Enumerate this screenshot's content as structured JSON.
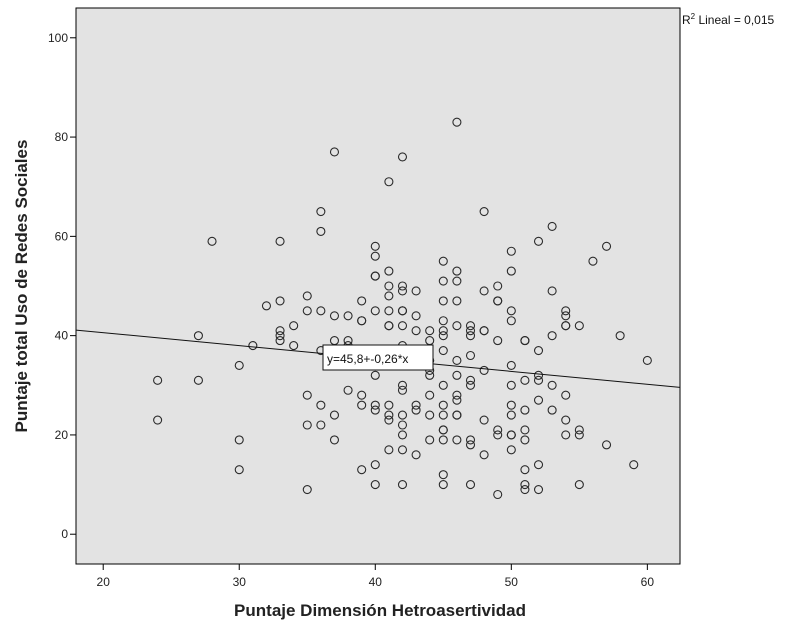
{
  "chart_data": {
    "type": "scatter",
    "title": "",
    "xlabel": "Puntaje Dimensión Hetroasertividad",
    "ylabel": "Puntaje total Uso de Redes Sociales",
    "xlim": [
      18,
      62.4
    ],
    "ylim": [
      -6,
      106
    ],
    "xticks": [
      20,
      30,
      40,
      50,
      60
    ],
    "yticks": [
      0,
      20,
      40,
      60,
      80,
      100
    ],
    "grid": false,
    "plot_background": "#e3e3e3",
    "marker_color": "#2b2b2b",
    "fit_line": {
      "intercept": 45.8,
      "slope": -0.26,
      "equation_label": "y=45,8+-0,26*x",
      "r2_prefix": "R",
      "r2_sup": "2",
      "r2_suffix": " Lineal = 0,015"
    },
    "points": [
      [
        24,
        31
      ],
      [
        24,
        23
      ],
      [
        27,
        40
      ],
      [
        27,
        31
      ],
      [
        28,
        59
      ],
      [
        30,
        34
      ],
      [
        30,
        19
      ],
      [
        30,
        13
      ],
      [
        31,
        38
      ],
      [
        32,
        46
      ],
      [
        33,
        59
      ],
      [
        33,
        47
      ],
      [
        33,
        41
      ],
      [
        33,
        40
      ],
      [
        33,
        39
      ],
      [
        34,
        42
      ],
      [
        34,
        38
      ],
      [
        35,
        48
      ],
      [
        35,
        45
      ],
      [
        35,
        28
      ],
      [
        35,
        22
      ],
      [
        35,
        9
      ],
      [
        36,
        65
      ],
      [
        36,
        61
      ],
      [
        36,
        45
      ],
      [
        36,
        37
      ],
      [
        36,
        26
      ],
      [
        36,
        22
      ],
      [
        37,
        77
      ],
      [
        37,
        44
      ],
      [
        37,
        39
      ],
      [
        37,
        24
      ],
      [
        37,
        19
      ],
      [
        38,
        44
      ],
      [
        38,
        39
      ],
      [
        38,
        38
      ],
      [
        38,
        29
      ],
      [
        39,
        47
      ],
      [
        39,
        43
      ],
      [
        39,
        43
      ],
      [
        39,
        28
      ],
      [
        39,
        26
      ],
      [
        39,
        13
      ],
      [
        40,
        58
      ],
      [
        40,
        56
      ],
      [
        40,
        52
      ],
      [
        40,
        52
      ],
      [
        40,
        45
      ],
      [
        40,
        34
      ],
      [
        40,
        32
      ],
      [
        40,
        26
      ],
      [
        40,
        25
      ],
      [
        40,
        14
      ],
      [
        40,
        10
      ],
      [
        41,
        71
      ],
      [
        41,
        53
      ],
      [
        41,
        50
      ],
      [
        41,
        48
      ],
      [
        41,
        45
      ],
      [
        41,
        42
      ],
      [
        41,
        42
      ],
      [
        41,
        35
      ],
      [
        41,
        26
      ],
      [
        41,
        24
      ],
      [
        41,
        23
      ],
      [
        41,
        17
      ],
      [
        42,
        76
      ],
      [
        42,
        50
      ],
      [
        42,
        49
      ],
      [
        42,
        45
      ],
      [
        42,
        45
      ],
      [
        42,
        42
      ],
      [
        42,
        38
      ],
      [
        42,
        36
      ],
      [
        42,
        30
      ],
      [
        42,
        29
      ],
      [
        42,
        24
      ],
      [
        42,
        22
      ],
      [
        42,
        20
      ],
      [
        42,
        17
      ],
      [
        42,
        10
      ],
      [
        43,
        49
      ],
      [
        43,
        44
      ],
      [
        43,
        41
      ],
      [
        43,
        34
      ],
      [
        43,
        26
      ],
      [
        43,
        25
      ],
      [
        43,
        16
      ],
      [
        44,
        39
      ],
      [
        44,
        41
      ],
      [
        44,
        35
      ],
      [
        44,
        33
      ],
      [
        44,
        32
      ],
      [
        44,
        28
      ],
      [
        44,
        24
      ],
      [
        44,
        19
      ],
      [
        45,
        55
      ],
      [
        45,
        51
      ],
      [
        45,
        47
      ],
      [
        45,
        43
      ],
      [
        45,
        41
      ],
      [
        45,
        40
      ],
      [
        45,
        37
      ],
      [
        45,
        30
      ],
      [
        45,
        26
      ],
      [
        45,
        24
      ],
      [
        45,
        21
      ],
      [
        45,
        21
      ],
      [
        45,
        19
      ],
      [
        45,
        12
      ],
      [
        45,
        10
      ],
      [
        46,
        83
      ],
      [
        46,
        53
      ],
      [
        46,
        51
      ],
      [
        46,
        47
      ],
      [
        46,
        42
      ],
      [
        46,
        35
      ],
      [
        46,
        32
      ],
      [
        46,
        28
      ],
      [
        46,
        27
      ],
      [
        46,
        24
      ],
      [
        46,
        24
      ],
      [
        46,
        19
      ],
      [
        47,
        42
      ],
      [
        47,
        41
      ],
      [
        47,
        40
      ],
      [
        47,
        36
      ],
      [
        47,
        31
      ],
      [
        47,
        30
      ],
      [
        47,
        19
      ],
      [
        47,
        18
      ],
      [
        47,
        10
      ],
      [
        48,
        65
      ],
      [
        48,
        49
      ],
      [
        48,
        41
      ],
      [
        48,
        41
      ],
      [
        48,
        33
      ],
      [
        48,
        23
      ],
      [
        48,
        16
      ],
      [
        49,
        50
      ],
      [
        49,
        47
      ],
      [
        49,
        47
      ],
      [
        49,
        39
      ],
      [
        49,
        21
      ],
      [
        49,
        20
      ],
      [
        49,
        8
      ],
      [
        50,
        57
      ],
      [
        50,
        53
      ],
      [
        50,
        45
      ],
      [
        50,
        43
      ],
      [
        50,
        34
      ],
      [
        50,
        30
      ],
      [
        50,
        26
      ],
      [
        50,
        24
      ],
      [
        50,
        20
      ],
      [
        50,
        20
      ],
      [
        50,
        17
      ],
      [
        51,
        39
      ],
      [
        51,
        39
      ],
      [
        51,
        31
      ],
      [
        51,
        25
      ],
      [
        51,
        21
      ],
      [
        51,
        19
      ],
      [
        51,
        13
      ],
      [
        51,
        10
      ],
      [
        51,
        9
      ],
      [
        52,
        59
      ],
      [
        52,
        37
      ],
      [
        52,
        32
      ],
      [
        52,
        31
      ],
      [
        52,
        27
      ],
      [
        52,
        14
      ],
      [
        52,
        9
      ],
      [
        53,
        62
      ],
      [
        53,
        49
      ],
      [
        53,
        40
      ],
      [
        53,
        30
      ],
      [
        53,
        25
      ],
      [
        54,
        45
      ],
      [
        54,
        44
      ],
      [
        54,
        42
      ],
      [
        54,
        42
      ],
      [
        54,
        28
      ],
      [
        54,
        23
      ],
      [
        54,
        20
      ],
      [
        55,
        42
      ],
      [
        55,
        21
      ],
      [
        55,
        20
      ],
      [
        55,
        10
      ],
      [
        56,
        55
      ],
      [
        57,
        58
      ],
      [
        57,
        18
      ],
      [
        58,
        40
      ],
      [
        59,
        14
      ],
      [
        60,
        35
      ]
    ]
  }
}
